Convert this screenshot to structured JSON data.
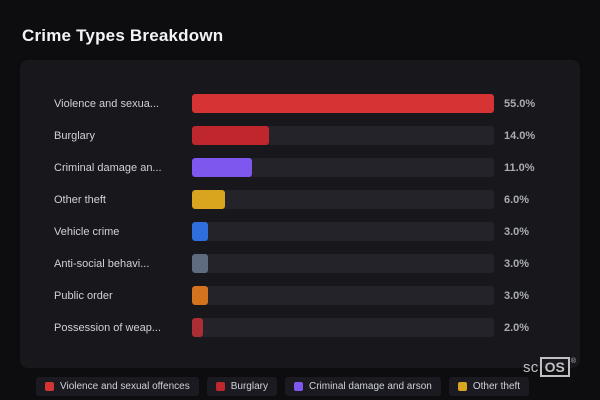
{
  "page": {
    "title": "Crime Types Breakdown"
  },
  "chart_data": {
    "type": "bar",
    "orientation": "horizontal",
    "title": "Crime Types Breakdown",
    "categories": [
      "Violence and sexua...",
      "Burglary",
      "Criminal damage an...",
      "Other theft",
      "Vehicle crime",
      "Anti-social behavi...",
      "Public order",
      "Possession of weap..."
    ],
    "values": [
      55.0,
      14.0,
      11.0,
      6.0,
      3.0,
      3.0,
      3.0,
      2.0
    ],
    "value_labels": [
      "55.0%",
      "14.0%",
      "11.0%",
      "6.0%",
      "3.0%",
      "3.0%",
      "3.0%",
      "2.0%"
    ],
    "colors": [
      "#d63434",
      "#bf272c",
      "#7e57ef",
      "#d9a51f",
      "#2e6fdd",
      "#5f6c80",
      "#d4731e",
      "#ab2e35"
    ],
    "xlim": [
      0,
      55
    ],
    "grid": false,
    "legend_position": "bottom"
  },
  "legend": {
    "items": [
      {
        "label": "Violence and sexual offences",
        "color": "#d63434"
      },
      {
        "label": "Burglary",
        "color": "#bf272c"
      },
      {
        "label": "Criminal damage and arson",
        "color": "#7e57ef"
      },
      {
        "label": "Other theft",
        "color": "#d9a51f"
      }
    ]
  },
  "brand": {
    "sc": "sc",
    "os": "OS",
    "reg": "®"
  }
}
